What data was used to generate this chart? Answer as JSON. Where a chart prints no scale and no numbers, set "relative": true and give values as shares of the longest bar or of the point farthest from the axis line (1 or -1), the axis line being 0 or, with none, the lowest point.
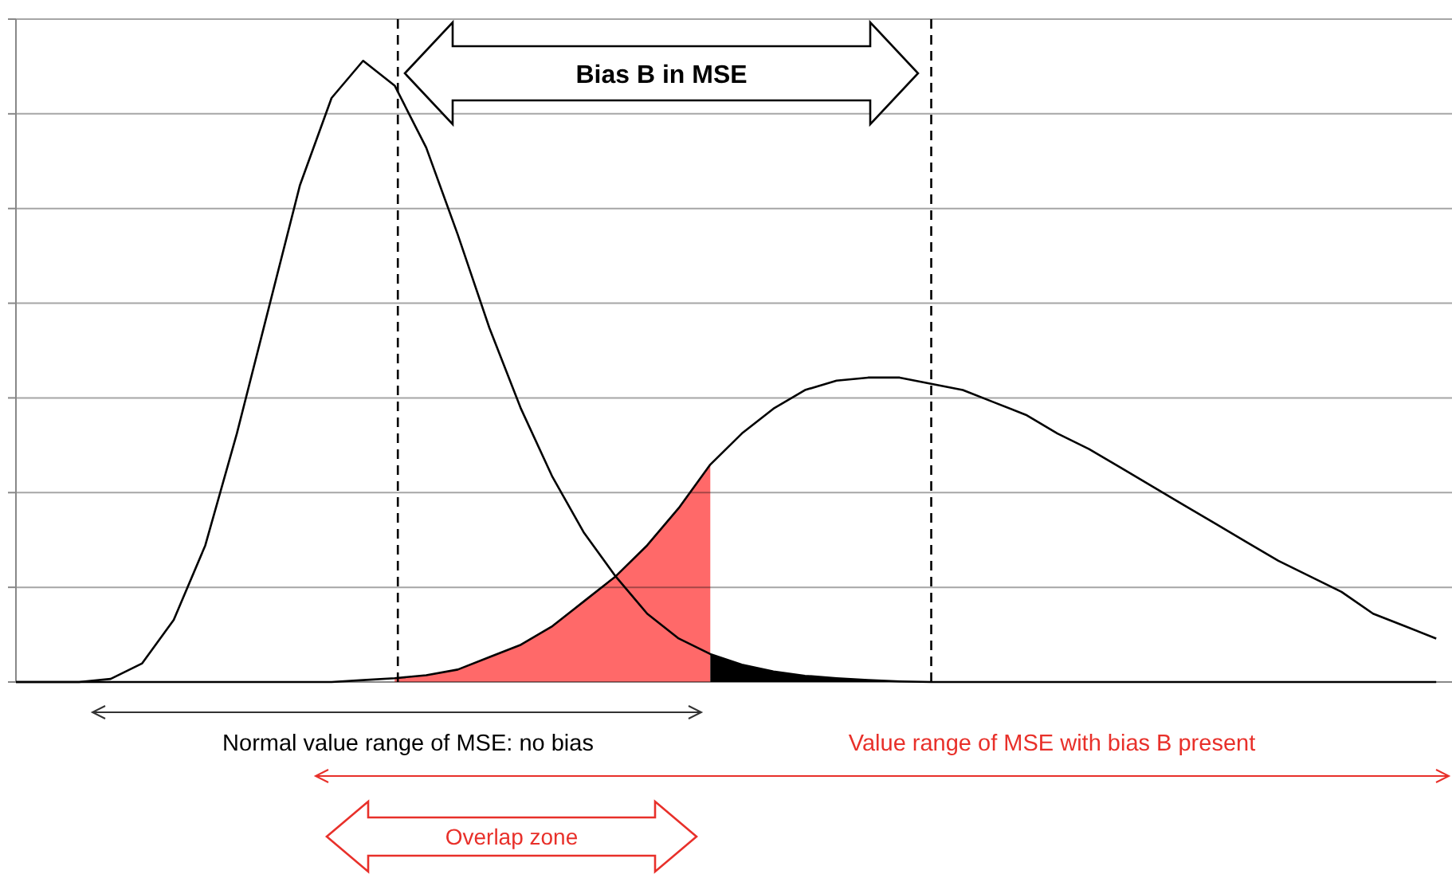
{
  "chart_data": {
    "type": "line",
    "relative": true,
    "categories": [
      null,
      null,
      null,
      null,
      null,
      null,
      null,
      null,
      null,
      null,
      null,
      null,
      null,
      null,
      null,
      null,
      null,
      null,
      null,
      null,
      null,
      null,
      null,
      null,
      null,
      null,
      null,
      null,
      null,
      null,
      null,
      null,
      null,
      null,
      null,
      null,
      null,
      null,
      null,
      null,
      null,
      null,
      null,
      null,
      null,
      null
    ],
    "grid": "y",
    "series": [
      {
        "color": "#000000",
        "values": [
          0,
          0,
          0,
          0.005,
          0.03,
          0.1,
          0.22,
          0.4,
          0.6,
          0.8,
          0.94,
          1,
          0.96,
          0.86,
          0.72,
          0.57,
          0.44,
          0.33,
          0.24,
          0.17,
          0.11,
          0.07,
          0.045,
          0.028,
          0.017,
          0.01,
          0.006,
          0.003,
          0.001,
          0,
          0,
          0,
          0,
          0,
          0,
          0,
          0,
          0,
          0,
          0,
          0,
          0,
          0,
          0,
          0,
          0
        ],
        "lower": [
          null,
          null,
          null,
          null,
          null,
          null,
          null,
          null,
          null,
          null,
          null,
          null,
          null,
          null,
          null,
          null,
          null,
          null,
          null,
          null,
          null,
          null,
          0,
          0,
          0,
          0,
          0,
          0,
          0,
          0,
          null,
          null,
          null,
          null,
          null,
          null,
          null,
          null,
          null,
          null,
          null,
          null,
          null,
          null,
          null,
          null
        ],
        "upper": [
          null,
          null,
          null,
          null,
          null,
          null,
          null,
          null,
          null,
          null,
          null,
          null,
          null,
          null,
          null,
          null,
          null,
          null,
          null,
          null,
          null,
          null,
          0.045,
          0.028,
          0.017,
          0.01,
          0.006,
          0.003,
          0.001,
          0,
          null,
          null,
          null,
          null,
          null,
          null,
          null,
          null,
          null,
          null,
          null,
          null,
          null,
          null,
          null,
          null
        ]
      },
      {
        "color": "#000000",
        "values": [
          0,
          0,
          0,
          0,
          0,
          0,
          0,
          0,
          0,
          0,
          0,
          0.003,
          0.006,
          0.011,
          0.02,
          0.04,
          0.06,
          0.09,
          0.13,
          0.17,
          0.22,
          0.28,
          0.35,
          0.4,
          0.44,
          0.47,
          0.485,
          0.49,
          0.49,
          0.48,
          0.47,
          0.45,
          0.43,
          0.4,
          0.375,
          0.345,
          0.315,
          0.285,
          0.255,
          0.225,
          0.195,
          0.17,
          0.145,
          0.11,
          0.09,
          0.07
        ],
        "lower": [
          null,
          null,
          null,
          null,
          null,
          null,
          null,
          null,
          null,
          null,
          null,
          null,
          0,
          0,
          0,
          0,
          0,
          0,
          0,
          0,
          0,
          0,
          0,
          null,
          null,
          null,
          null,
          null,
          null,
          null,
          null,
          null,
          null,
          null,
          null,
          null,
          null,
          null,
          null,
          null,
          null,
          null,
          null,
          null,
          null,
          null
        ],
        "upper": [
          null,
          null,
          null,
          null,
          null,
          null,
          null,
          null,
          null,
          null,
          null,
          null,
          0.006,
          0.011,
          0.02,
          0.04,
          0.06,
          0.09,
          0.13,
          0.17,
          0.22,
          0.28,
          0.35,
          null,
          null,
          null,
          null,
          null,
          null,
          null,
          null,
          null,
          null,
          null,
          null,
          null,
          null,
          null,
          null,
          null,
          null,
          null,
          null,
          null,
          null,
          null
        ]
      }
    ],
    "annotations": [
      "Bias B in MSE",
      "Normal value range of MSE: no bias",
      "Value range of MSE with bias B present",
      "Overlap zone"
    ]
  }
}
